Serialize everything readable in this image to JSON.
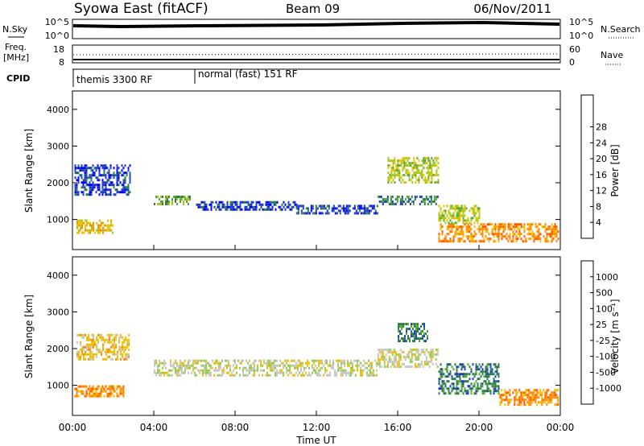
{
  "header": {
    "station": "Syowa East (fitACF)",
    "beam": "Beam 09",
    "date": "06/Nov/2011"
  },
  "top_panels": {
    "nsky_label": "N.Sky",
    "nsky_ticks": [
      "10^5",
      "10^0"
    ],
    "nsearch_label": "N.Search",
    "nsearch_ticks": [
      "10^5",
      "10^0"
    ],
    "freq_label": "Freq.",
    "freq_unit": "[MHz]",
    "freq_ticks": [
      "18",
      "8"
    ],
    "nave_label": "Nave",
    "nave_ticks": [
      "60",
      "0"
    ],
    "cpid_label": "CPID",
    "cpid_segments": [
      {
        "label": "themis 3300 RF",
        "start_hour": 0
      },
      {
        "label": "normal (fast) 151 RF",
        "start_hour": 6
      }
    ]
  },
  "chart_data": [
    {
      "type": "heatmap",
      "name": "power",
      "ylabel": "Slant Range [km]",
      "xlabel": "Time UT",
      "ylim": [
        180,
        4500
      ],
      "xlim": [
        0,
        24
      ],
      "yticks": [
        1000,
        2000,
        3000,
        4000
      ],
      "xticks": [
        "00:00",
        "04:00",
        "08:00",
        "12:00",
        "16:00",
        "20:00",
        "00:00"
      ],
      "colorbar_label": "Power [dB]",
      "colorbar_ticks": [
        "4",
        "8",
        "12",
        "16",
        "20",
        "24",
        "28"
      ],
      "colorbar_colors": [
        "#0000ff",
        "#1f3fbf",
        "#2e7d4f",
        "#55aa33",
        "#a8c814",
        "#f0c000",
        "#ff8c00",
        "#ff5a00",
        "#e00000"
      ],
      "regions": [
        {
          "t0": 0.1,
          "t1": 2.8,
          "r0": 1700,
          "r1": 2500,
          "level": 1
        },
        {
          "t0": 0.2,
          "t1": 2.0,
          "r0": 650,
          "r1": 1000,
          "level": 5
        },
        {
          "t0": 4.0,
          "t1": 5.8,
          "r0": 1450,
          "r1": 1650,
          "level": 3
        },
        {
          "t0": 6.0,
          "t1": 11.0,
          "r0": 1300,
          "r1": 1500,
          "level": 1
        },
        {
          "t0": 11.0,
          "t1": 15.0,
          "r0": 1150,
          "r1": 1400,
          "level": 1
        },
        {
          "t0": 15.0,
          "t1": 18.0,
          "r0": 1400,
          "r1": 1650,
          "level": 2
        },
        {
          "t0": 15.5,
          "t1": 18.0,
          "r0": 2000,
          "r1": 2700,
          "level": 4
        },
        {
          "t0": 18.0,
          "t1": 23.9,
          "r0": 400,
          "r1": 900,
          "level": 6
        },
        {
          "t0": 18.0,
          "t1": 20.0,
          "r0": 900,
          "r1": 1400,
          "level": 4
        }
      ]
    },
    {
      "type": "heatmap",
      "name": "velocity",
      "ylabel": "Slant Range [km]",
      "xlabel": "Time UT",
      "ylim": [
        180,
        4500
      ],
      "xlim": [
        0,
        24
      ],
      "yticks": [
        1000,
        2000,
        3000,
        4000
      ],
      "xticks": [
        "00:00",
        "04:00",
        "08:00",
        "12:00",
        "16:00",
        "20:00",
        "00:00"
      ],
      "colorbar_label": "Velocity [m s⁻¹]",
      "colorbar_ticks": [
        "1000",
        "500",
        "100",
        "25",
        "-25",
        "-100",
        "-500",
        "-1000"
      ],
      "colorbar_colors": [
        "#1f3fbf",
        "#2e7d4f",
        "#55aa33",
        "#8fd04a",
        "#c8c8c0",
        "#f0c000",
        "#ff8c00",
        "#ff5a00",
        "#e00000"
      ],
      "regions": [
        {
          "t0": 0.1,
          "t1": 2.5,
          "r0": 700,
          "r1": 1000,
          "level": 6
        },
        {
          "t0": 0.2,
          "t1": 2.8,
          "r0": 1700,
          "r1": 2400,
          "level": 5
        },
        {
          "t0": 4.0,
          "t1": 15.0,
          "r0": 1300,
          "r1": 1700,
          "level": 4
        },
        {
          "t0": 15.0,
          "t1": 18.0,
          "r0": 1500,
          "r1": 2000,
          "level": 4
        },
        {
          "t0": 16.0,
          "t1": 17.5,
          "r0": 2200,
          "r1": 2700,
          "level": 1
        },
        {
          "t0": 18.0,
          "t1": 21.0,
          "r0": 800,
          "r1": 1600,
          "level": 1
        },
        {
          "t0": 21.0,
          "t1": 23.9,
          "r0": 500,
          "r1": 900,
          "level": 6
        }
      ]
    }
  ]
}
